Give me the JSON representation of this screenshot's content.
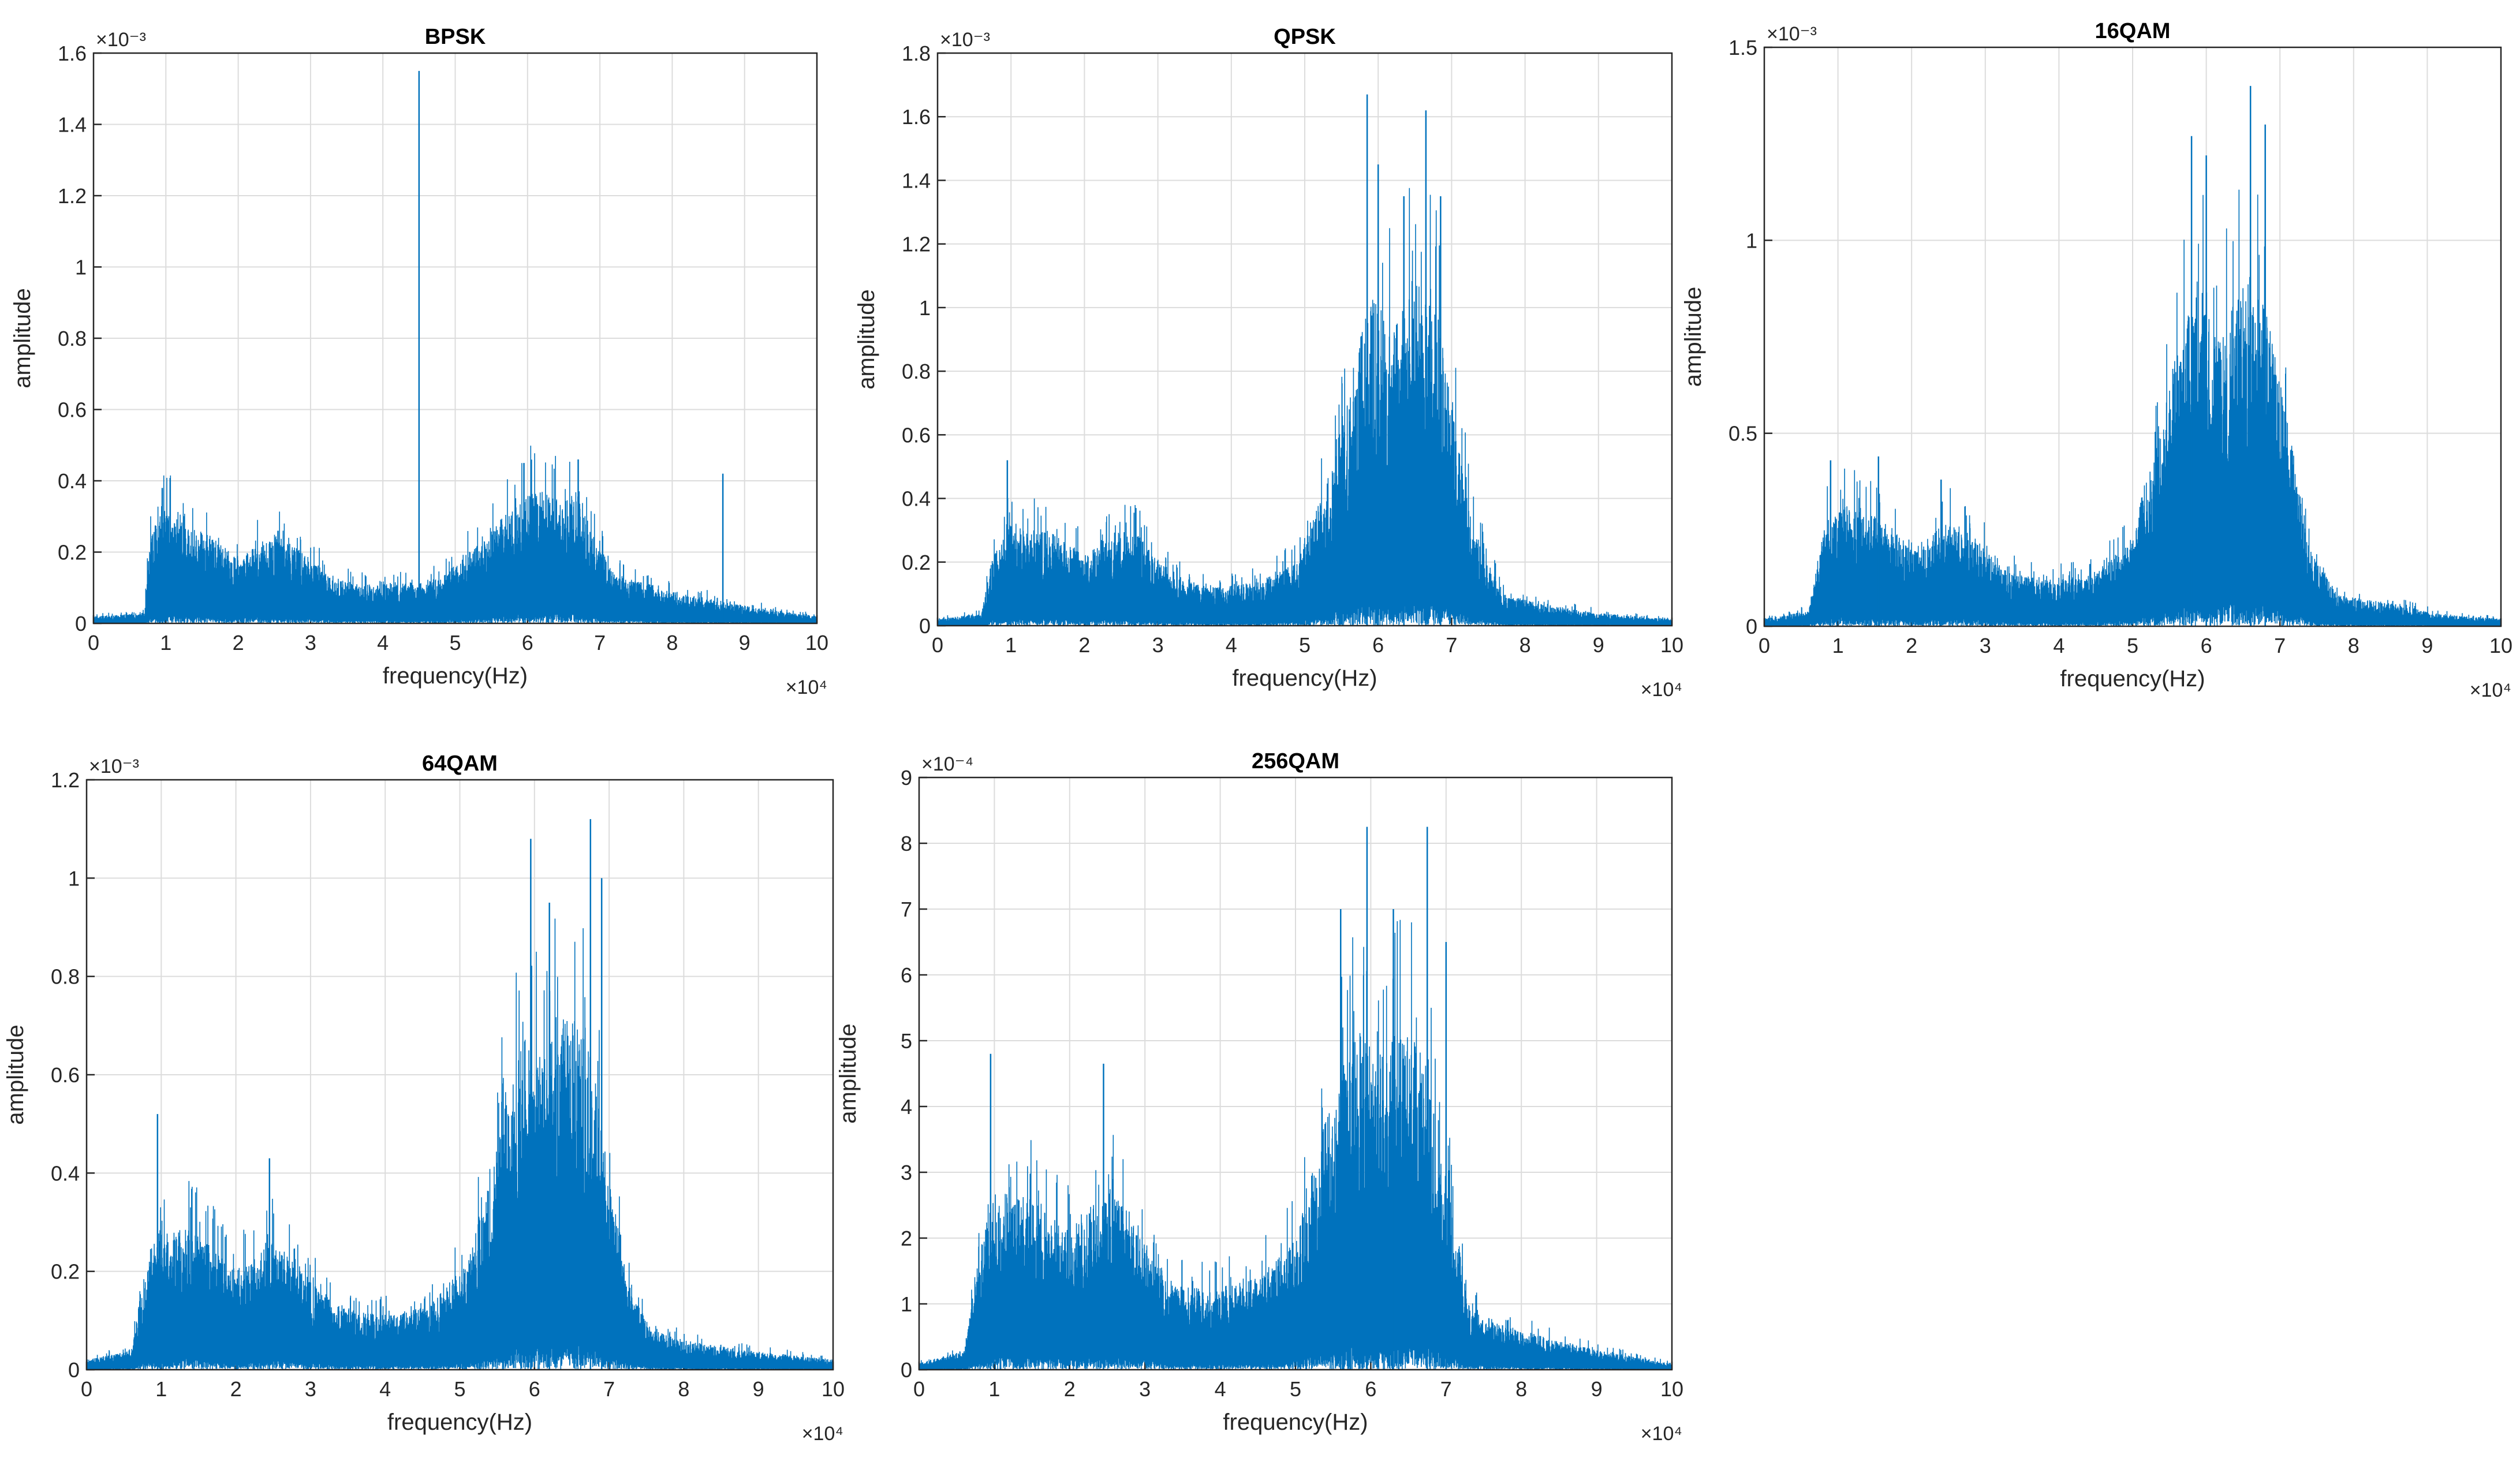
{
  "chart_data": [
    {
      "type": "line",
      "title": "BPSK",
      "xlabel": "frequency(Hz)",
      "ylabel": "amplitude",
      "x_exponent": "×10⁴",
      "y_exponent": "×10⁻³",
      "xlim": [
        0,
        10
      ],
      "ylim": [
        0,
        1.6
      ],
      "xticks": [
        "0",
        "1",
        "2",
        "3",
        "4",
        "5",
        "6",
        "7",
        "8",
        "9",
        "10"
      ],
      "yticks": [
        "0",
        "0.2",
        "0.4",
        "0.6",
        "0.8",
        "1",
        "1.2",
        "1.4",
        "1.6"
      ],
      "grid": true,
      "color": "#0072BD",
      "envelope": {
        "x": [
          0,
          0.7,
          0.8,
          1.0,
          1.3,
          1.6,
          2.0,
          2.5,
          2.9,
          3.3,
          3.7,
          4.2,
          4.8,
          5.3,
          5.8,
          6.1,
          6.5,
          6.7,
          6.9,
          7.2,
          8.0,
          9.0,
          10.0
        ],
        "y": [
          0.02,
          0.03,
          0.28,
          0.32,
          0.27,
          0.25,
          0.19,
          0.25,
          0.2,
          0.13,
          0.11,
          0.11,
          0.13,
          0.22,
          0.33,
          0.38,
          0.34,
          0.38,
          0.25,
          0.14,
          0.09,
          0.05,
          0.02
        ]
      },
      "peaks": [
        {
          "x": 0.95,
          "y": 0.38
        },
        {
          "x": 2.55,
          "y": 0.26
        },
        {
          "x": 4.5,
          "y": 1.55
        },
        {
          "x": 5.95,
          "y": 0.45
        },
        {
          "x": 6.7,
          "y": 0.46
        },
        {
          "x": 8.7,
          "y": 0.42
        }
      ]
    },
    {
      "type": "line",
      "title": "QPSK",
      "xlabel": "frequency(Hz)",
      "ylabel": "amplitude",
      "x_exponent": "×10⁴",
      "y_exponent": "×10⁻³",
      "xlim": [
        0,
        10
      ],
      "ylim": [
        0,
        1.8
      ],
      "xticks": [
        "0",
        "1",
        "2",
        "3",
        "4",
        "5",
        "6",
        "7",
        "8",
        "9",
        "10"
      ],
      "yticks": [
        "0",
        "0.2",
        "0.4",
        "0.6",
        "0.8",
        "1",
        "1.2",
        "1.4",
        "1.6",
        "1.8"
      ],
      "grid": true,
      "color": "#0072BD",
      "envelope": {
        "x": [
          0,
          0.6,
          0.75,
          1.0,
          1.5,
          2.0,
          2.5,
          2.8,
          3.2,
          3.8,
          4.4,
          4.9,
          5.3,
          5.6,
          5.9,
          6.2,
          6.5,
          6.8,
          7.0,
          7.3,
          7.7,
          8.2,
          9.0,
          10.0
        ],
        "y": [
          0.02,
          0.04,
          0.22,
          0.32,
          0.3,
          0.22,
          0.3,
          0.28,
          0.16,
          0.12,
          0.14,
          0.2,
          0.45,
          0.75,
          1.05,
          0.95,
          1.05,
          1.0,
          0.7,
          0.3,
          0.1,
          0.07,
          0.04,
          0.02
        ]
      },
      "peaks": [
        {
          "x": 0.95,
          "y": 0.52
        },
        {
          "x": 2.7,
          "y": 0.37
        },
        {
          "x": 5.85,
          "y": 1.67
        },
        {
          "x": 6.0,
          "y": 1.45
        },
        {
          "x": 6.35,
          "y": 1.35
        },
        {
          "x": 6.65,
          "y": 1.62
        },
        {
          "x": 6.85,
          "y": 1.35
        }
      ]
    },
    {
      "type": "line",
      "title": "16QAM",
      "xlabel": "frequency(Hz)",
      "ylabel": "amplitude",
      "x_exponent": "×10⁴",
      "y_exponent": "×10⁻³",
      "xlim": [
        0,
        10
      ],
      "ylim": [
        0,
        1.5
      ],
      "xticks": [
        "0",
        "1",
        "2",
        "3",
        "4",
        "5",
        "6",
        "7",
        "8",
        "9",
        "10"
      ],
      "yticks": [
        "0",
        "0.5",
        "1",
        "1.5"
      ],
      "grid": true,
      "color": "#0072BD",
      "envelope": {
        "x": [
          0,
          0.6,
          0.8,
          1.0,
          1.5,
          2.0,
          2.5,
          2.8,
          3.3,
          3.9,
          4.5,
          5.0,
          5.3,
          5.6,
          5.9,
          6.2,
          6.5,
          6.8,
          7.1,
          7.4,
          7.8,
          8.5,
          9.2,
          10.0
        ],
        "y": [
          0.02,
          0.04,
          0.25,
          0.32,
          0.3,
          0.2,
          0.27,
          0.24,
          0.14,
          0.12,
          0.14,
          0.22,
          0.45,
          0.72,
          0.9,
          0.75,
          0.9,
          0.85,
          0.55,
          0.2,
          0.08,
          0.06,
          0.03,
          0.02
        ]
      },
      "peaks": [
        {
          "x": 0.9,
          "y": 0.43
        },
        {
          "x": 1.55,
          "y": 0.44
        },
        {
          "x": 2.4,
          "y": 0.38
        },
        {
          "x": 5.8,
          "y": 1.27
        },
        {
          "x": 6.0,
          "y": 1.22
        },
        {
          "x": 6.6,
          "y": 1.4
        },
        {
          "x": 6.8,
          "y": 1.3
        }
      ]
    },
    {
      "type": "line",
      "title": "64QAM",
      "xlabel": "frequency(Hz)",
      "ylabel": "amplitude",
      "x_exponent": "×10⁴",
      "y_exponent": "×10⁻³",
      "xlim": [
        0,
        10
      ],
      "ylim": [
        0,
        1.2
      ],
      "xticks": [
        "0",
        "1",
        "2",
        "3",
        "4",
        "5",
        "6",
        "7",
        "8",
        "9",
        "10"
      ],
      "yticks": [
        "0",
        "0.2",
        "0.4",
        "0.6",
        "0.8",
        "1",
        "1.2"
      ],
      "grid": true,
      "color": "#0072BD",
      "envelope": {
        "x": [
          0,
          0.6,
          0.8,
          1.0,
          1.5,
          2.0,
          2.5,
          2.8,
          3.3,
          3.9,
          4.6,
          5.1,
          5.5,
          5.8,
          6.1,
          6.4,
          6.7,
          7.0,
          7.3,
          7.6,
          8.0,
          8.8,
          10.0
        ],
        "y": [
          0.02,
          0.04,
          0.22,
          0.3,
          0.28,
          0.2,
          0.26,
          0.22,
          0.14,
          0.11,
          0.13,
          0.22,
          0.45,
          0.7,
          0.65,
          0.72,
          0.7,
          0.4,
          0.15,
          0.08,
          0.06,
          0.04,
          0.02
        ]
      },
      "peaks": [
        {
          "x": 0.95,
          "y": 0.52
        },
        {
          "x": 2.45,
          "y": 0.43
        },
        {
          "x": 5.95,
          "y": 1.08
        },
        {
          "x": 6.2,
          "y": 0.95
        },
        {
          "x": 6.75,
          "y": 1.12
        },
        {
          "x": 6.9,
          "y": 1.0
        }
      ]
    },
    {
      "type": "line",
      "title": "256QAM",
      "xlabel": "frequency(Hz)",
      "ylabel": "amplitude",
      "x_exponent": "×10⁴",
      "y_exponent": "×10⁻⁴",
      "xlim": [
        0,
        10
      ],
      "ylim": [
        0,
        9
      ],
      "xticks": [
        "0",
        "1",
        "2",
        "3",
        "4",
        "5",
        "6",
        "7",
        "8",
        "9",
        "10"
      ],
      "yticks": [
        "0",
        "1",
        "2",
        "3",
        "4",
        "5",
        "6",
        "7",
        "8",
        "9"
      ],
      "grid": true,
      "color": "#0072BD",
      "envelope": {
        "x": [
          0,
          0.6,
          0.8,
          1.0,
          1.5,
          2.0,
          2.5,
          2.8,
          3.3,
          3.8,
          4.5,
          5.0,
          5.4,
          5.8,
          6.1,
          6.4,
          6.7,
          7.0,
          7.3,
          7.7,
          8.3,
          9.0,
          10.0
        ],
        "y": [
          0.1,
          0.3,
          1.8,
          2.7,
          2.6,
          2.1,
          2.8,
          2.4,
          1.4,
          1.2,
          1.4,
          2.0,
          3.8,
          5.2,
          4.8,
          5.2,
          5.0,
          3.0,
          1.0,
          0.7,
          0.5,
          0.3,
          0.1
        ]
      },
      "peaks": [
        {
          "x": 0.95,
          "y": 4.8
        },
        {
          "x": 2.45,
          "y": 4.65
        },
        {
          "x": 5.6,
          "y": 7.0
        },
        {
          "x": 5.95,
          "y": 8.25
        },
        {
          "x": 6.3,
          "y": 7.0
        },
        {
          "x": 6.75,
          "y": 8.25
        },
        {
          "x": 7.0,
          "y": 6.5
        }
      ]
    }
  ]
}
